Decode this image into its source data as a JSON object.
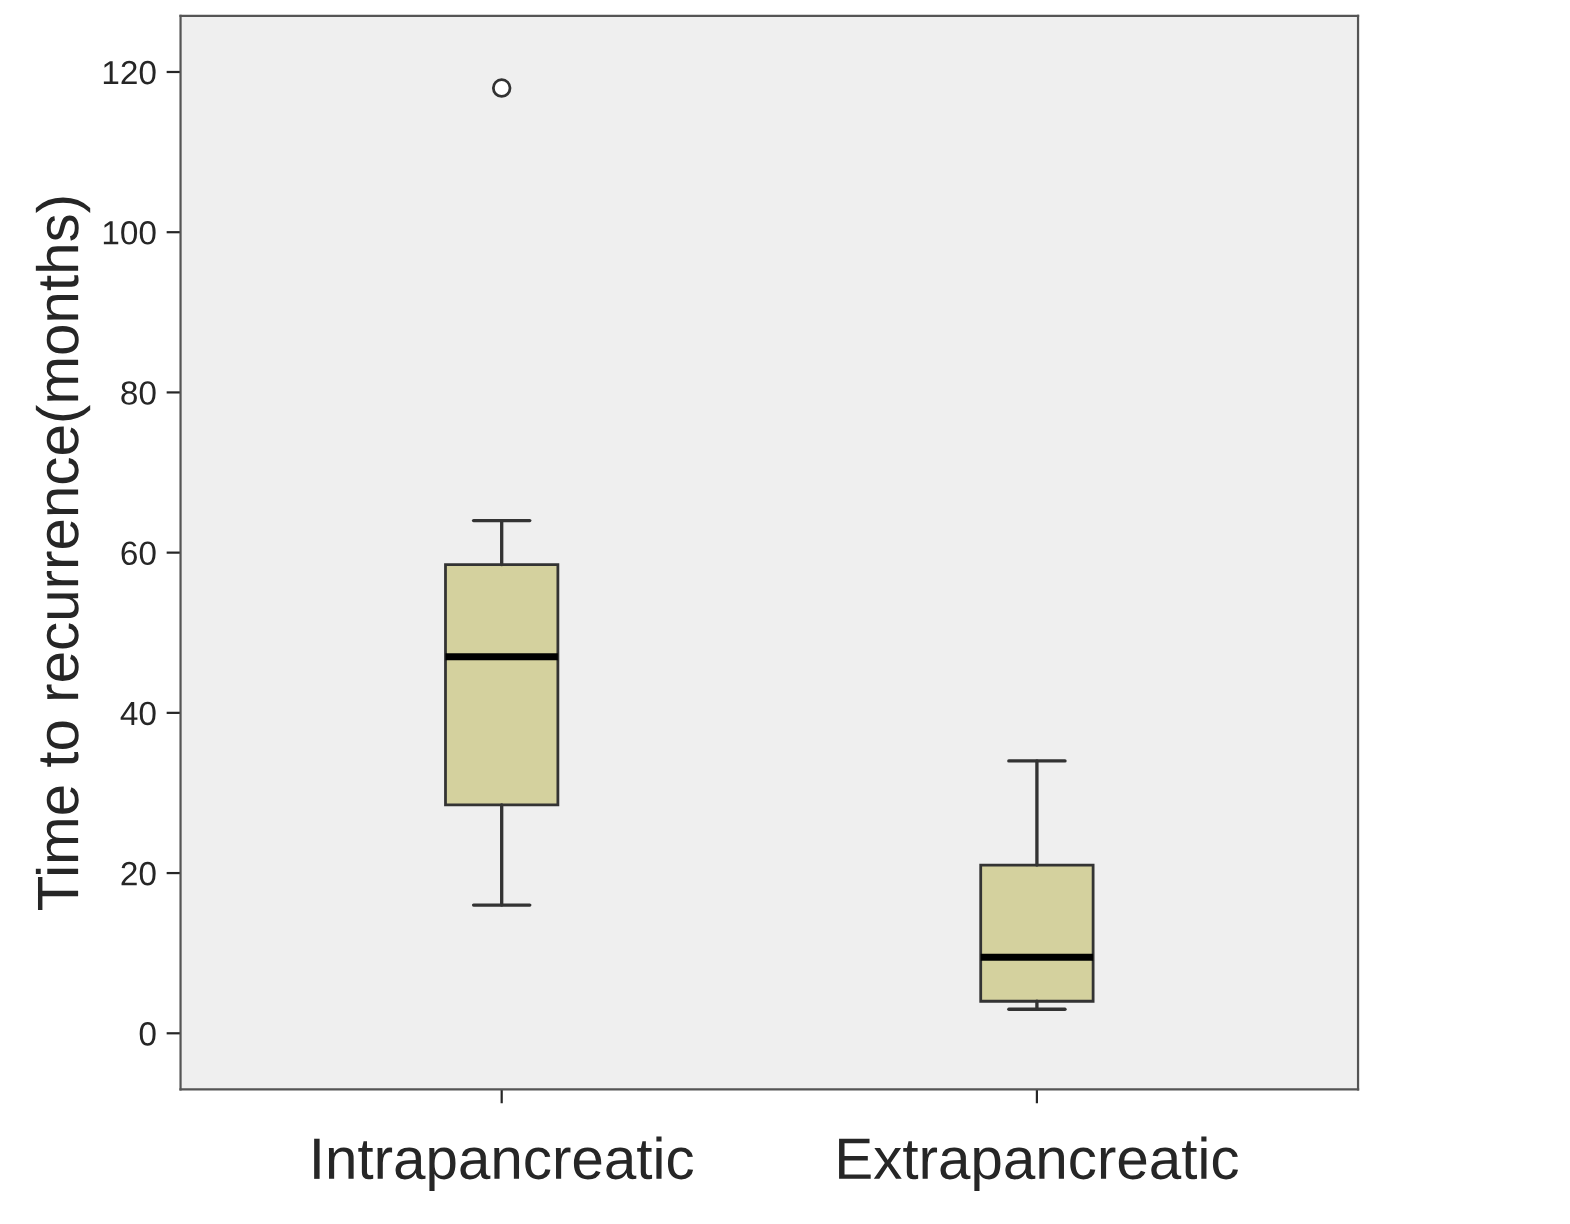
{
  "chart_data": {
    "type": "box",
    "ylabel": "Time to recurrence(months)",
    "categories": [
      "Intrapancreatic",
      "Extrapancreatic"
    ],
    "series": [
      {
        "color": "#d4d19e",
        "boxes": [
          {
            "low": 16,
            "q1": 28.5,
            "median": 47,
            "q3": 58.5,
            "high": 64,
            "outliers": [
              118
            ]
          },
          {
            "low": 3,
            "q1": 4,
            "median": 9.5,
            "q3": 21,
            "high": 34
          }
        ]
      }
    ],
    "ylim": [
      -7,
      127
    ],
    "yticks": [
      0,
      20,
      40,
      60,
      80,
      100,
      120
    ],
    "grid": false,
    "legend": false
  }
}
